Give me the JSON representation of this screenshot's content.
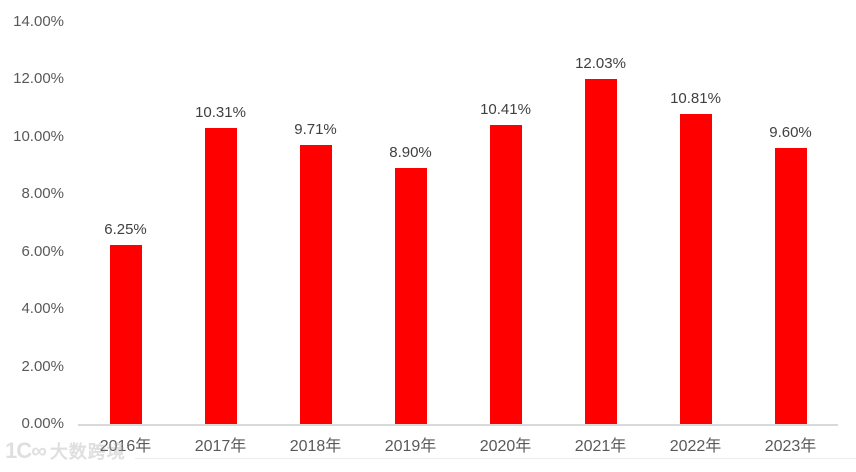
{
  "chart_data": {
    "type": "bar",
    "title": "",
    "xlabel": "",
    "ylabel": "",
    "categories": [
      "2016年",
      "2017年",
      "2018年",
      "2019年",
      "2020年",
      "2021年",
      "2022年",
      "2023年"
    ],
    "values": [
      6.25,
      10.31,
      9.71,
      8.9,
      10.41,
      12.03,
      10.81,
      9.6
    ],
    "data_labels": [
      "6.25%",
      "10.31%",
      "9.71%",
      "8.90%",
      "10.41%",
      "12.03%",
      "10.81%",
      "9.60%"
    ],
    "ylim": [
      0,
      14
    ],
    "ytick_step": 2,
    "ytick_labels": [
      "0.00%",
      "2.00%",
      "4.00%",
      "6.00%",
      "8.00%",
      "10.00%",
      "12.00%",
      "14.00%"
    ],
    "grid": false,
    "legend": "none",
    "colors": {
      "bar": "#ff0000",
      "axis_line": "#d9d9d9",
      "data_label": "#404040",
      "tick_label": "#595959"
    }
  },
  "watermark": {
    "logo_text": "1C∞",
    "brand": "大数跨境"
  }
}
